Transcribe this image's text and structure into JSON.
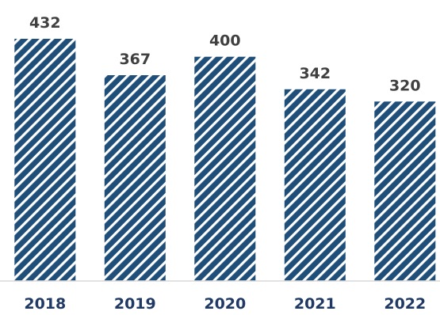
{
  "chart_data": {
    "type": "bar",
    "categories": [
      "2018",
      "2019",
      "2020",
      "2021",
      "2022"
    ],
    "values": [
      432,
      367,
      400,
      342,
      320
    ],
    "title": "",
    "xlabel": "",
    "ylabel": "",
    "ylim": [
      0,
      432
    ],
    "grid": false,
    "legend": "none",
    "data_labels": true,
    "bar_color": "#1f4e79",
    "bar_pattern": "diagonal-stripes",
    "stripe_color": "#ffffff",
    "axis_line_color": "#d9d9d9",
    "data_label_color": "#404040",
    "tick_label_color": "#1f3864"
  }
}
